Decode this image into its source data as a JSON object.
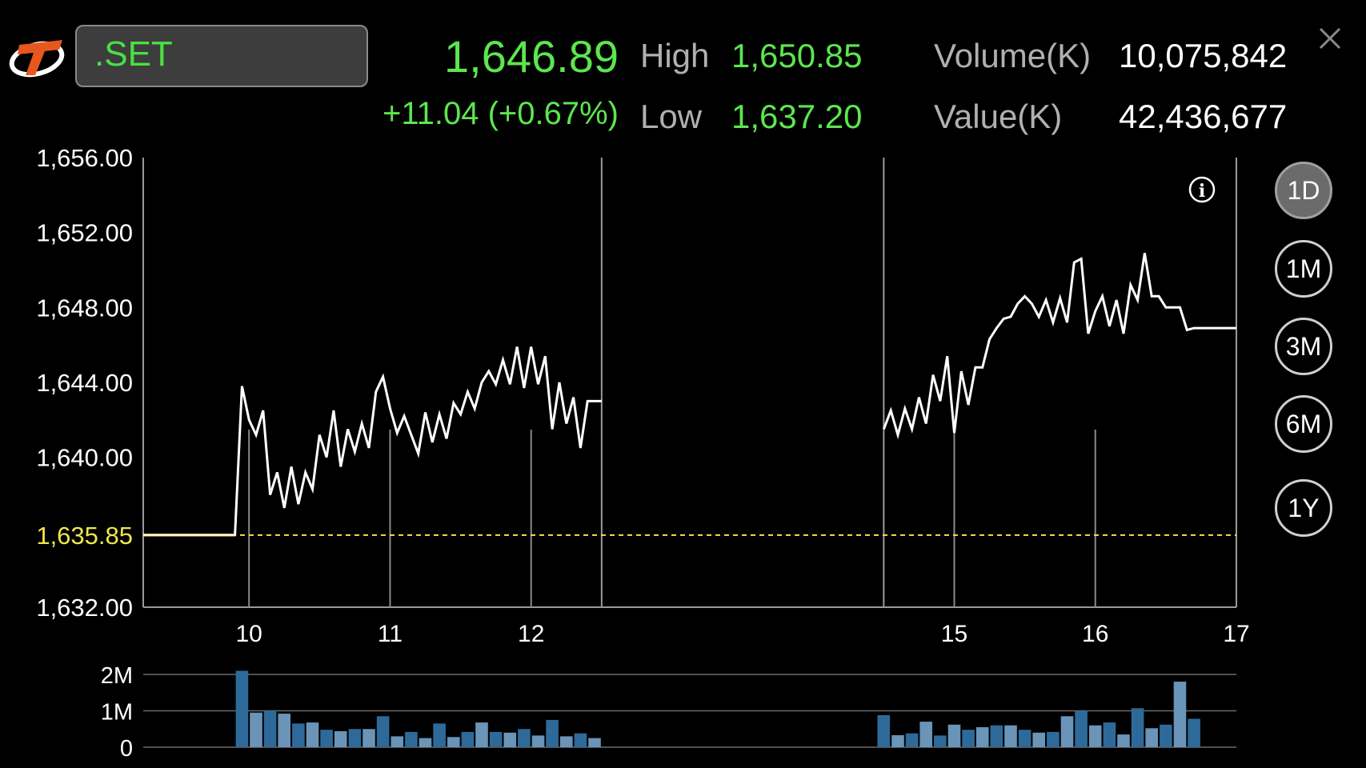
{
  "header": {
    "symbol": ".SET",
    "last": "1,646.89",
    "change": "+11.04 (+0.67%)",
    "high_label": "High",
    "high_value": "1,650.85",
    "low_label": "Low",
    "low_value": "1,637.20",
    "volume_label": "Volume(K)",
    "volume_value": "10,075,842",
    "value_label": "Value(K)",
    "value_value": "42,436,677"
  },
  "periods": [
    "1D",
    "1M",
    "3M",
    "6M",
    "1Y"
  ],
  "active_period": "1D",
  "colors": {
    "up": "#5ce64f",
    "reference": "#f0e64a",
    "volume_dark": "#2e6a99",
    "volume_light": "#6a94b8",
    "line": "#ffffff"
  },
  "chart_data": {
    "type": "line",
    "title": "",
    "yticks": [
      "1,656.00",
      "1,652.00",
      "1,648.00",
      "1,644.00",
      "1,640.00",
      "1,632.00"
    ],
    "ylim": [
      1632,
      1656
    ],
    "reference_value": 1635.85,
    "reference_label": "1,635.85",
    "xticks": [
      "10",
      "11",
      "12",
      "15",
      "16",
      "17"
    ],
    "xlim": [
      9.25,
      17
    ],
    "sessions": [
      {
        "name": "morning",
        "x": [
          9.25,
          9.9,
          9.95,
          10.0,
          10.05,
          10.1,
          10.15,
          10.2,
          10.25,
          10.3,
          10.35,
          10.4,
          10.45,
          10.5,
          10.55,
          10.6,
          10.65,
          10.7,
          10.75,
          10.8,
          10.85,
          10.9,
          10.95,
          11.0,
          11.05,
          11.1,
          11.15,
          11.2,
          11.25,
          11.3,
          11.35,
          11.4,
          11.45,
          11.5,
          11.55,
          11.6,
          11.65,
          11.7,
          11.75,
          11.8,
          11.85,
          11.9,
          11.95,
          12.0,
          12.05,
          12.1,
          12.15,
          12.2,
          12.25,
          12.3,
          12.35,
          12.4,
          12.45,
          12.5
        ],
        "y": [
          1635.85,
          1635.85,
          1643.8,
          1642.0,
          1641.2,
          1642.5,
          1638.0,
          1639.2,
          1637.3,
          1639.5,
          1637.5,
          1639.2,
          1638.3,
          1641.2,
          1640.0,
          1642.5,
          1639.5,
          1641.5,
          1640.3,
          1641.8,
          1640.5,
          1643.5,
          1644.3,
          1642.6,
          1641.3,
          1642.2,
          1641.2,
          1640.2,
          1642.4,
          1640.8,
          1642.3,
          1641.0,
          1642.9,
          1642.3,
          1643.5,
          1642.6,
          1644.0,
          1644.6,
          1643.9,
          1645.2,
          1643.9,
          1645.9,
          1643.7,
          1645.9,
          1643.9,
          1645.4,
          1641.5,
          1644.0,
          1641.8,
          1643.2,
          1640.5,
          1643.0,
          1643.0,
          1643.0
        ]
      },
      {
        "name": "afternoon",
        "x": [
          14.5,
          14.55,
          14.6,
          14.65,
          14.7,
          14.75,
          14.8,
          14.85,
          14.9,
          14.95,
          15.0,
          15.05,
          15.1,
          15.15,
          15.2,
          15.25,
          15.3,
          15.35,
          15.4,
          15.45,
          15.5,
          15.55,
          15.6,
          15.65,
          15.7,
          15.75,
          15.8,
          15.85,
          15.9,
          15.95,
          16.0,
          16.05,
          16.1,
          16.15,
          16.2,
          16.25,
          16.3,
          16.35,
          16.4,
          16.45,
          16.5,
          16.55,
          16.6,
          16.65,
          16.7,
          16.75,
          16.8,
          16.85,
          16.9,
          16.95,
          17.0
        ],
        "y": [
          1641.5,
          1642.5,
          1641.2,
          1642.6,
          1641.5,
          1643.2,
          1641.8,
          1644.4,
          1643.0,
          1645.4,
          1641.3,
          1644.6,
          1642.8,
          1644.8,
          1644.8,
          1646.3,
          1646.9,
          1647.4,
          1647.5,
          1648.2,
          1648.6,
          1648.2,
          1647.5,
          1648.4,
          1647.2,
          1648.5,
          1647.2,
          1650.4,
          1650.6,
          1646.6,
          1647.8,
          1648.6,
          1647.0,
          1648.4,
          1646.6,
          1649.2,
          1648.4,
          1650.9,
          1648.6,
          1648.6,
          1648.0,
          1648.0,
          1648.0,
          1646.8,
          1646.9,
          1646.9,
          1646.9,
          1646.9,
          1646.9,
          1646.9,
          1646.9
        ]
      }
    ],
    "session_boundaries": [
      12.5,
      14.5
    ],
    "volume": {
      "yticks": [
        "2M",
        "1M",
        "0"
      ],
      "ylim": [
        0,
        2
      ],
      "sessions": [
        {
          "x0": 9.95,
          "step": 0.1,
          "values": [
            2.1,
            0.95,
            1.0,
            0.92,
            0.65,
            0.68,
            0.48,
            0.44,
            0.5,
            0.5,
            0.85,
            0.3,
            0.42,
            0.25,
            0.65,
            0.28,
            0.42,
            0.68,
            0.42,
            0.4,
            0.5,
            0.32,
            0.75,
            0.3,
            0.38,
            0.25
          ]
        },
        {
          "x0": 14.5,
          "step": 0.1,
          "values": [
            0.88,
            0.33,
            0.38,
            0.7,
            0.32,
            0.62,
            0.48,
            0.55,
            0.6,
            0.6,
            0.48,
            0.4,
            0.42,
            0.85,
            1.0,
            0.6,
            0.68,
            0.35,
            1.07,
            0.52,
            0.62,
            1.8,
            0.78
          ]
        }
      ]
    }
  }
}
